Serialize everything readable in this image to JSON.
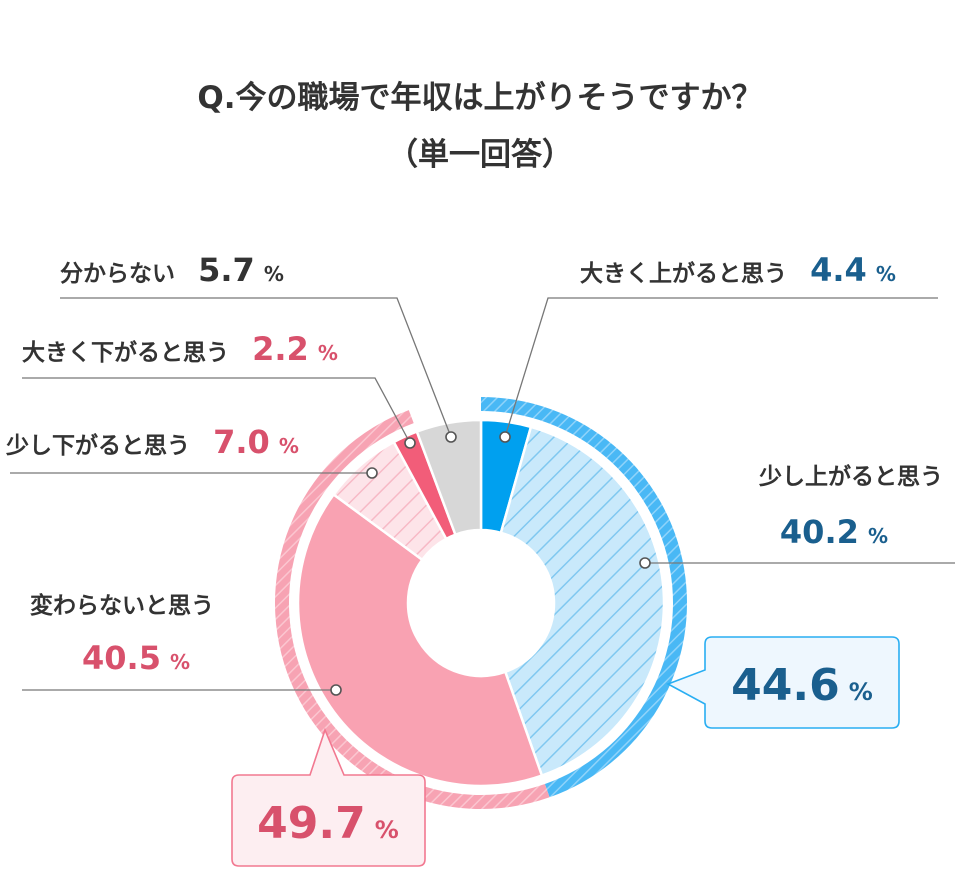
{
  "title_line1": "Q.今の職場で年収は上がりそうですか？",
  "title_line2": "（単一回答）",
  "colors": {
    "blue_text": "#1a5f8e",
    "pink_text": "#d8516c",
    "dark_text": "#333333",
    "blue_solid": "#00a0ef",
    "blue_light": "#c9e9fb",
    "blue_stripe": "#80c8f0",
    "pink_solid": "#f25d79",
    "pink_medium": "#f9a2b2",
    "pink_light": "#fde4e9",
    "gray": "#d7d7d7",
    "line": "#777777"
  },
  "chart_data": {
    "type": "pie",
    "variant": "donut",
    "title": "Q.今の職場で年収は上がりそうですか？（単一回答）",
    "slices": [
      {
        "label": "大きく上がると思う",
        "value": 4.4,
        "color": "#00a0ef",
        "pattern": "solid"
      },
      {
        "label": "少し上がると思う",
        "value": 40.2,
        "color": "#c9e9fb",
        "pattern": "hatched"
      },
      {
        "label": "変わらないと思う",
        "value": 40.5,
        "color": "#f9a2b2",
        "pattern": "solid"
      },
      {
        "label": "少し下がると思う",
        "value": 7.0,
        "color": "#fde4e9",
        "pattern": "hatched"
      },
      {
        "label": "大きく下がると思う",
        "value": 2.2,
        "color": "#f25d79",
        "pattern": "solid"
      },
      {
        "label": "分からない",
        "value": 5.7,
        "color": "#d7d7d7",
        "pattern": "solid"
      }
    ],
    "groups": [
      {
        "value": 44.6,
        "color": "#00a0ef"
      },
      {
        "value": 49.7,
        "color": "#f9a2b2"
      }
    ]
  },
  "labels": {
    "big_up": {
      "text": "大きく上がると思う",
      "value": "4.4",
      "pct": "%"
    },
    "small_up": {
      "text": "少し上がると思う",
      "value": "40.2",
      "pct": "%"
    },
    "no_change": {
      "text": "変わらないと思う",
      "value": "40.5",
      "pct": "%"
    },
    "small_down": {
      "text": "少し下がると思う",
      "value": "7.0",
      "pct": "%"
    },
    "big_down": {
      "text": "大きく下がると思う",
      "value": "2.2",
      "pct": "%"
    },
    "unknown": {
      "text": "分からない",
      "value": "5.7",
      "pct": "%"
    },
    "up_total": {
      "value": "44.6",
      "pct": "%"
    },
    "down_total": {
      "value": "49.7",
      "pct": "%"
    }
  }
}
